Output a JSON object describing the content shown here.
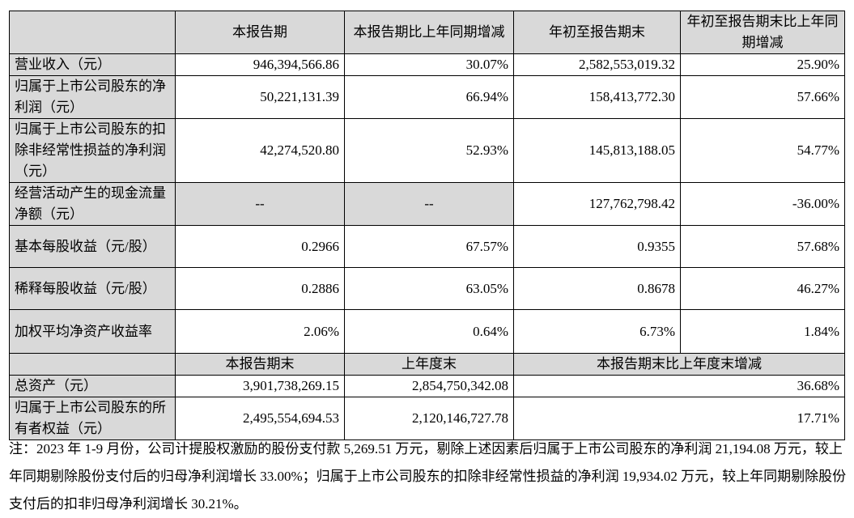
{
  "header": [
    "",
    "本报告期",
    "本报告期比上年同期增减",
    "年初至报告期末",
    "年初至报告期末比上年同期增减"
  ],
  "rows": [
    {
      "label": "营业收入（元）",
      "values": [
        "946,394,566.86",
        "30.07%",
        "2,582,553,019.32",
        "25.90%"
      ]
    },
    {
      "label": "归属于上市公司股东的净利润（元）",
      "values": [
        "50,221,131.39",
        "66.94%",
        "158,413,772.30",
        "57.66%"
      ]
    },
    {
      "label": "归属于上市公司股东的扣除非经常性损益的净利润（元）",
      "values": [
        "42,274,520.80",
        "52.93%",
        "145,813,188.05",
        "54.77%"
      ]
    },
    {
      "label": "经营活动产生的现金流量净额（元）",
      "values": [
        "--",
        "--",
        "127,762,798.42",
        "-36.00%"
      ],
      "gray": [
        true,
        true,
        false,
        false
      ]
    },
    {
      "label": "基本每股收益（元/股）",
      "values": [
        "0.2966",
        "67.57%",
        "0.9355",
        "57.68%"
      ]
    },
    {
      "label": "稀释每股收益（元/股）",
      "values": [
        "0.2886",
        "63.05%",
        "0.8678",
        "46.27%"
      ]
    },
    {
      "label": "加权平均净资产收益率",
      "values": [
        "2.06%",
        "0.64%",
        "6.73%",
        "1.84%"
      ]
    }
  ],
  "header2": [
    "",
    "本报告期末",
    "上年度末",
    "本报告期末比上年度末增减"
  ],
  "rows2": [
    {
      "label": "总资产（元）",
      "values": [
        "3,901,738,269.15",
        "2,854,750,342.08",
        "36.68%"
      ]
    },
    {
      "label": "归属于上市公司股东的所有者权益（元）",
      "values": [
        "2,495,554,694.53",
        "2,120,146,727.78",
        "17.71%"
      ]
    }
  ],
  "note": "注：2023 年 1-9 月份，公司计提股权激励的股份支付款 5,269.51 万元，剔除上述因素后归属于上市公司股东的净利润 21,194.08 万元，较上年同期剔除股份支付后的归母净利润增长 33.00%；归属于上市公司股东的扣除非经常性损益的净利润 19,934.02 万元，较上年同期剔除股份支付后的扣非归母净利润增长 30.21%。"
}
